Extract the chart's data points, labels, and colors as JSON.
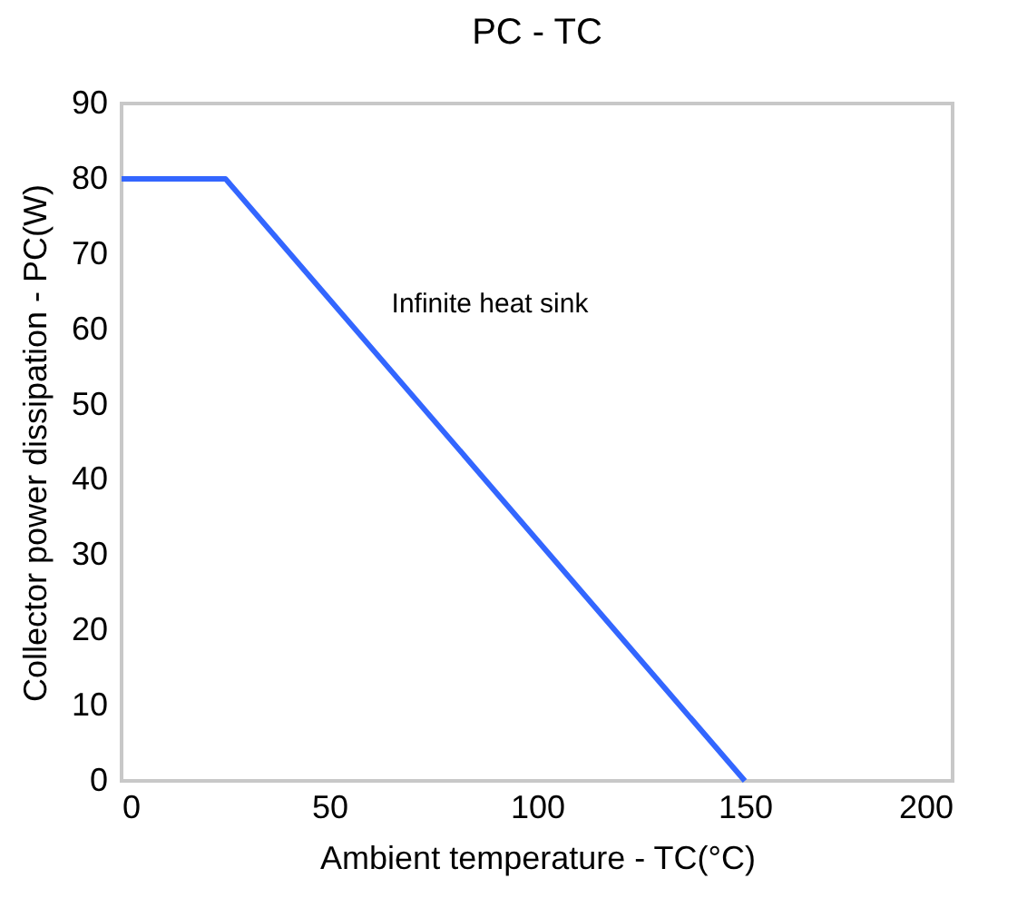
{
  "chart_data": {
    "type": "line",
    "title": "PC - TC",
    "xlabel": "Ambient temperature - TC(°C)",
    "ylabel": "Collector power dissipation - PC(W)",
    "x": [
      0,
      25,
      150
    ],
    "series": [
      {
        "color": "#3366ff",
        "values": [
          80,
          80,
          0
        ]
      }
    ],
    "xlim": [
      0,
      200
    ],
    "xticks": [
      0,
      50,
      100,
      150,
      200
    ],
    "ylim": [
      0,
      90
    ],
    "yticks": [
      0,
      10,
      20,
      30,
      40,
      50,
      60,
      70,
      80,
      90
    ],
    "annotations": [
      "Infinite heat sink"
    ],
    "grid": false,
    "legend": false,
    "marker": "none",
    "line_style": "solid"
  }
}
